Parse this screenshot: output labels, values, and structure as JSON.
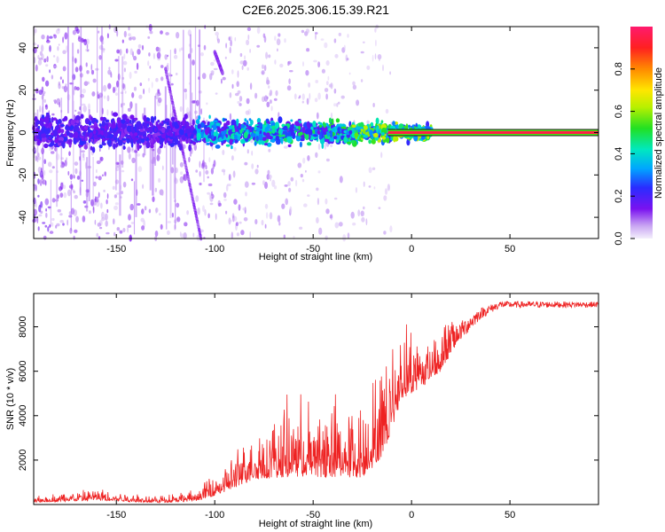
{
  "title": "C2E6.2025.306.15.39.R21",
  "chart_data": [
    {
      "type": "heatmap",
      "name": "spectrogram",
      "xlabel": "Height of straight line (km)",
      "ylabel": "Frequency (Hz)",
      "xlim": [
        -192,
        95
      ],
      "ylim": [
        -50,
        50
      ],
      "xticks": [
        -150,
        -100,
        -50,
        0,
        50
      ],
      "yticks": [
        -40,
        -20,
        0,
        20,
        40
      ],
      "colorbar": {
        "label": "Normalized spectral amplitude",
        "range": [
          0,
          1
        ],
        "ticks": [
          "0.0",
          "0.2",
          "0.4",
          "0.6",
          "0.8"
        ]
      },
      "features": {
        "steady_line": {
          "x_start": 0,
          "x_end": 95,
          "frequency": 0,
          "amplitude": 0.95
        },
        "streaks": [
          {
            "x_start": -100,
            "x_end": -96,
            "y_start": 38,
            "y_end": 28
          },
          {
            "x_start": -125,
            "x_end": -107,
            "y_start": 30,
            "y_end": -50
          }
        ],
        "noise_region": {
          "x_start": -192,
          "x_end": -10,
          "band_halfwidth": 5
        }
      }
    },
    {
      "type": "line",
      "name": "snr",
      "xlabel": "Height of straight line (km)",
      "ylabel": "SNR (10 * v/v)",
      "xlim": [
        -192,
        95
      ],
      "ylim": [
        0,
        9500
      ],
      "xticks": [
        -150,
        -100,
        -50,
        0,
        50
      ],
      "yticks": [
        2000,
        4000,
        6000,
        8000
      ],
      "color": "#ee2222",
      "envelope": [
        {
          "x": -192,
          "base": 150,
          "spread": 200
        },
        {
          "x": -160,
          "base": 300,
          "spread": 400
        },
        {
          "x": -130,
          "base": 150,
          "spread": 250
        },
        {
          "x": -110,
          "base": 250,
          "spread": 350
        },
        {
          "x": -95,
          "base": 800,
          "spread": 900
        },
        {
          "x": -80,
          "base": 1600,
          "spread": 1600
        },
        {
          "x": -60,
          "base": 2000,
          "spread": 2500
        },
        {
          "x": -40,
          "base": 2000,
          "spread": 2600
        },
        {
          "x": -25,
          "base": 1900,
          "spread": 2400
        },
        {
          "x": -15,
          "base": 3000,
          "spread": 3000
        },
        {
          "x": -5,
          "base": 5500,
          "spread": 2500
        },
        {
          "x": 5,
          "base": 5800,
          "spread": 1800
        },
        {
          "x": 15,
          "base": 6500,
          "spread": 1600
        },
        {
          "x": 25,
          "base": 7800,
          "spread": 900
        },
        {
          "x": 35,
          "base": 8600,
          "spread": 500
        },
        {
          "x": 45,
          "base": 9000,
          "spread": 300
        },
        {
          "x": 95,
          "base": 9000,
          "spread": 250
        }
      ]
    }
  ]
}
